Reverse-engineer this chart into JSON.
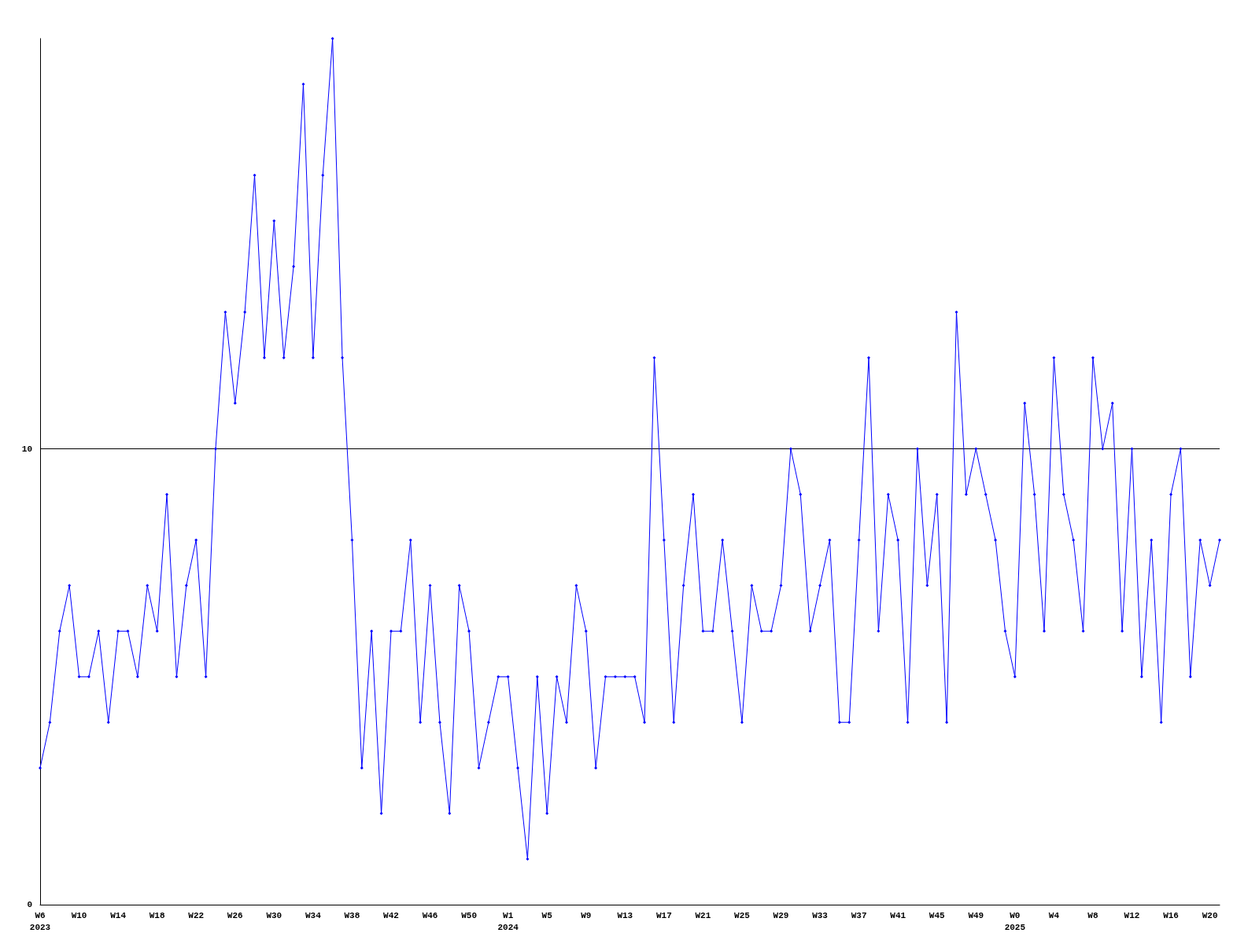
{
  "chart_data": {
    "type": "line",
    "categories": [
      "W6\n2023",
      null,
      null,
      null,
      "W10",
      null,
      null,
      null,
      "W14",
      null,
      null,
      null,
      "W18",
      null,
      null,
      null,
      "W22",
      null,
      null,
      null,
      "W26",
      null,
      null,
      null,
      "W30",
      null,
      null,
      null,
      "W34",
      null,
      null,
      null,
      "W38",
      null,
      null,
      null,
      "W42",
      null,
      null,
      null,
      "W46",
      null,
      null,
      null,
      "W50",
      null,
      null,
      null,
      "W1\n2024",
      null,
      null,
      null,
      "W5",
      null,
      null,
      null,
      "W9",
      null,
      null,
      null,
      "W13",
      null,
      null,
      null,
      "W17",
      null,
      null,
      null,
      "W21",
      null,
      null,
      null,
      "W25",
      null,
      null,
      null,
      "W29",
      null,
      null,
      null,
      "W33",
      null,
      null,
      null,
      "W37",
      null,
      null,
      null,
      "W41",
      null,
      null,
      null,
      "W45",
      null,
      null,
      null,
      "W49",
      null,
      null,
      null,
      "W0\n2025",
      null,
      null,
      null,
      "W4",
      null,
      null,
      null,
      "W8",
      null,
      null,
      null,
      "W12",
      null,
      null,
      null,
      "W16",
      null,
      null,
      null,
      "W20",
      null
    ],
    "series": [
      {
        "color": "#0000ff",
        "values": [
          3,
          4,
          6,
          7,
          5,
          5,
          6,
          4,
          6,
          6,
          5,
          7,
          6,
          9,
          5,
          7,
          8,
          5,
          10,
          13,
          11,
          13,
          16,
          12,
          15,
          12,
          14,
          18,
          12,
          16,
          19,
          12,
          8,
          3,
          6,
          2,
          6,
          6,
          8,
          4,
          7,
          4,
          2,
          7,
          6,
          3,
          4,
          5,
          5,
          3,
          1,
          5,
          2,
          5,
          4,
          7,
          6,
          3,
          5,
          5,
          5,
          5,
          4,
          12,
          8,
          4,
          7,
          9,
          6,
          6,
          8,
          6,
          4,
          7,
          6,
          6,
          7,
          10,
          9,
          6,
          7,
          8,
          4,
          4,
          8,
          12,
          6,
          9,
          8,
          4,
          10,
          7,
          9,
          4,
          13,
          9,
          10,
          9,
          8,
          6,
          5,
          11,
          9,
          6,
          12,
          9,
          8,
          6,
          12,
          10,
          11,
          6,
          10,
          5,
          8,
          4,
          9,
          10,
          5,
          8,
          7,
          8
        ]
      }
    ],
    "ylim": [
      0,
      19
    ],
    "yticks": [
      0,
      10
    ],
    "grid": "y",
    "marker": "diamond",
    "line_style": "solid"
  }
}
